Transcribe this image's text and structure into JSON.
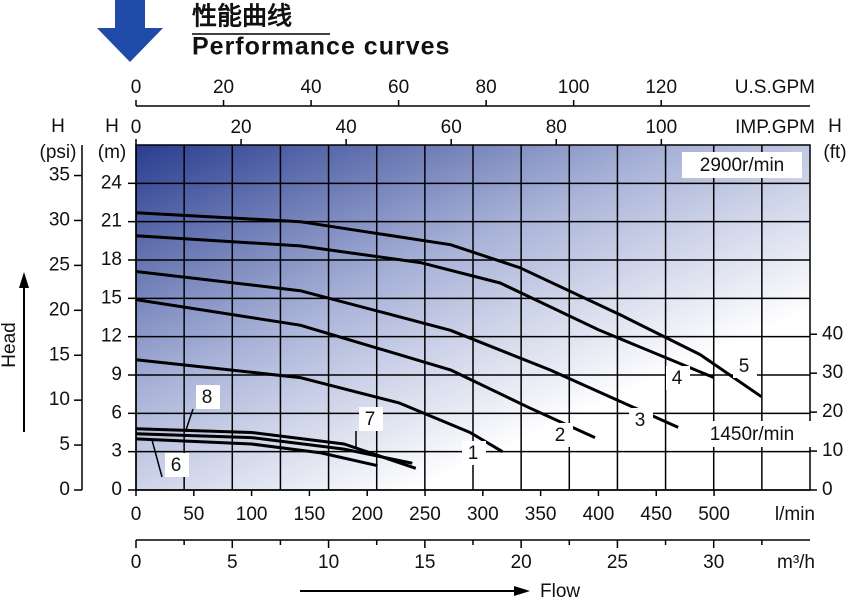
{
  "chart_data": {
    "type": "line",
    "title": "性能曲线",
    "subtitle": "Performance curves",
    "xlabel": "l/min",
    "xlim": [
      0,
      583
    ],
    "xticks": [
      0,
      50,
      100,
      150,
      200,
      250,
      300,
      350,
      400,
      450,
      500
    ],
    "ylabel": "H",
    "yunit": "(m)",
    "ylim": [
      0,
      27
    ],
    "yticks": [
      0,
      3,
      6,
      9,
      12,
      15,
      18,
      21,
      24
    ],
    "x2": {
      "label": "m³/h",
      "xlim": [
        0,
        35
      ],
      "xticks": [
        0,
        5,
        10,
        15,
        20,
        25,
        30
      ],
      "minor_ticks": [
        2.5,
        7.5,
        12.5,
        17.5,
        22.5,
        27.5,
        32.5
      ]
    },
    "x_top": {
      "label": "U.S.GPM",
      "xlim": [
        0,
        154
      ],
      "xticks": [
        0,
        20,
        40,
        60,
        80,
        100,
        120
      ]
    },
    "x_top2": {
      "label": "IMP.GPM",
      "xlim": [
        0,
        128.3
      ],
      "xticks": [
        0,
        20,
        40,
        60,
        80,
        100
      ]
    },
    "y_left2": {
      "label": "H",
      "unit": "(psi)",
      "ylim": [
        0,
        38.4
      ],
      "yticks": [
        0,
        5,
        10,
        15,
        20,
        25,
        30,
        35
      ]
    },
    "y2": {
      "label": "H",
      "unit": "(ft)",
      "y2lim": [
        0,
        88.6
      ],
      "y2ticks": [
        0,
        10,
        20,
        30,
        40
      ]
    },
    "flow_label": "Flow",
    "head_label": "Head",
    "annotations": [
      "2900r/min",
      "1450r/min"
    ],
    "grid": true,
    "series": [
      {
        "name": "1",
        "color": "#000000",
        "x": [
          0,
          142,
          228,
          289,
          317
        ],
        "values": [
          10.2,
          8.8,
          6.8,
          4.5,
          3.0
        ]
      },
      {
        "name": "2",
        "color": "#000000",
        "x": [
          0,
          142,
          272,
          341,
          397
        ],
        "values": [
          14.9,
          12.9,
          9.4,
          6.4,
          4.1
        ]
      },
      {
        "name": "3",
        "color": "#000000",
        "x": [
          0,
          142,
          272,
          358,
          469
        ],
        "values": [
          17.1,
          15.6,
          12.5,
          9.4,
          4.9
        ]
      },
      {
        "name": "4",
        "color": "#000000",
        "x": [
          0,
          142,
          246,
          315,
          401,
          500
        ],
        "values": [
          19.9,
          19.1,
          17.8,
          16.2,
          12.5,
          8.8
        ]
      },
      {
        "name": "5",
        "color": "#000000",
        "x": [
          0,
          142,
          272,
          332,
          419,
          488,
          541
        ],
        "values": [
          21.7,
          21.0,
          19.2,
          17.4,
          13.7,
          10.6,
          7.3
        ]
      },
      {
        "name": "6",
        "color": "#000000",
        "x": [
          0,
          100,
          160,
          209
        ],
        "values": [
          4.0,
          3.6,
          2.9,
          1.9
        ]
      },
      {
        "name": "7",
        "color": "#000000",
        "x": [
          0,
          100,
          180,
          242
        ],
        "values": [
          4.8,
          4.5,
          3.6,
          1.7
        ]
      },
      {
        "name": "8",
        "color": "#000000",
        "x": [
          0,
          100,
          180,
          239
        ],
        "values": [
          4.4,
          4.1,
          3.2,
          2.1
        ]
      }
    ]
  }
}
